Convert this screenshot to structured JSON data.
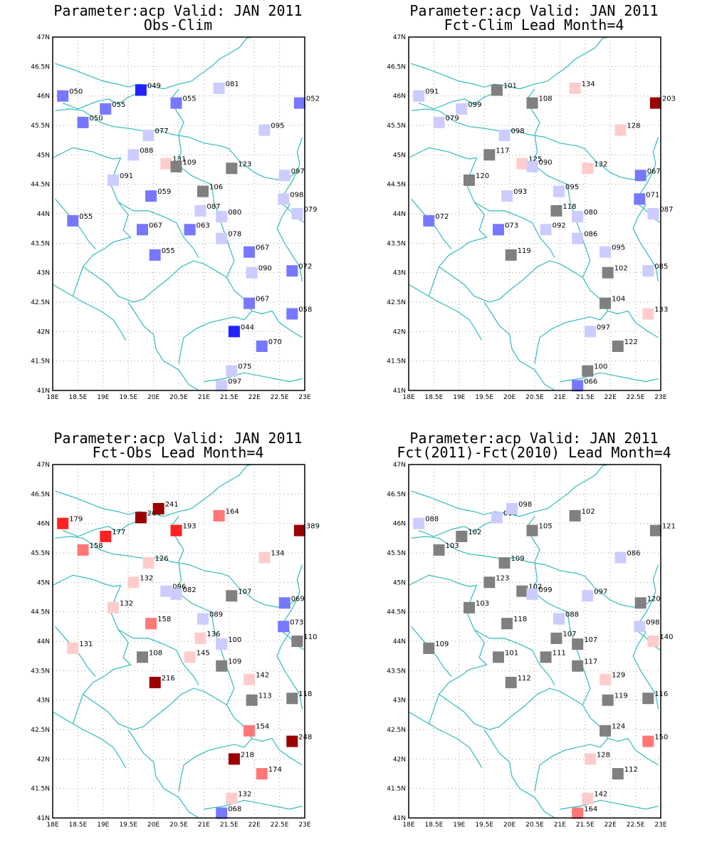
{
  "colors": {
    "border": "#33bbbb",
    "neutral": "#808080",
    "neg_light": "#ccccff",
    "neg_mid": "#7777ff",
    "neg_strong": "#2222ff",
    "pos_light": "#ffcccc",
    "pos_mid": "#ff7777",
    "pos_strong": "#ff2222",
    "pos_max": "#9b0000"
  },
  "axes": {
    "lon_range": [
      18,
      23
    ],
    "lat_range": [
      41,
      47
    ],
    "lon_ticks": [
      "18E",
      "18.5E",
      "19E",
      "19.5E",
      "20E",
      "20.5E",
      "21E",
      "21.5E",
      "22E",
      "22.5E",
      "23E"
    ],
    "lat_ticks": [
      "41N",
      "41.5N",
      "42N",
      "42.5N",
      "43N",
      "43.5N",
      "44N",
      "44.5N",
      "45N",
      "45.5N",
      "46N",
      "46.5N",
      "47N"
    ]
  },
  "panels": [
    {
      "title_line1": "Parameter:acp Valid: JAN 2011",
      "title_line2": "Obs-Clim",
      "stations": [
        {
          "lon": 18.2,
          "lat": 46.0,
          "label": "050",
          "color": "neg_mid"
        },
        {
          "lon": 19.05,
          "lat": 45.78,
          "label": "055",
          "color": "neg_mid"
        },
        {
          "lon": 19.75,
          "lat": 46.1,
          "label": "049",
          "color": "neg_strong"
        },
        {
          "lon": 20.45,
          "lat": 45.88,
          "label": "055",
          "color": "neg_mid"
        },
        {
          "lon": 21.3,
          "lat": 46.13,
          "label": "081",
          "color": "neg_light"
        },
        {
          "lon": 22.9,
          "lat": 45.88,
          "label": "052",
          "color": "neg_mid"
        },
        {
          "lon": 18.6,
          "lat": 45.55,
          "label": "050",
          "color": "neg_mid"
        },
        {
          "lon": 19.9,
          "lat": 45.33,
          "label": "077",
          "color": "neg_light"
        },
        {
          "lon": 22.2,
          "lat": 45.42,
          "label": "095",
          "color": "neg_light"
        },
        {
          "lon": 19.6,
          "lat": 45.0,
          "label": "088",
          "color": "neg_light"
        },
        {
          "lon": 20.25,
          "lat": 44.85,
          "label": "131",
          "color": "pos_light"
        },
        {
          "lon": 20.45,
          "lat": 44.8,
          "label": "109",
          "color": "neutral"
        },
        {
          "lon": 21.55,
          "lat": 44.77,
          "label": "123",
          "color": "neutral"
        },
        {
          "lon": 22.6,
          "lat": 44.65,
          "label": "097",
          "color": "neg_light"
        },
        {
          "lon": 19.2,
          "lat": 44.57,
          "label": "091",
          "color": "neg_light"
        },
        {
          "lon": 19.95,
          "lat": 44.3,
          "label": "059",
          "color": "neg_mid"
        },
        {
          "lon": 20.98,
          "lat": 44.38,
          "label": "106",
          "color": "neutral"
        },
        {
          "lon": 22.58,
          "lat": 44.25,
          "label": "098",
          "color": "neg_light"
        },
        {
          "lon": 20.93,
          "lat": 44.05,
          "label": "087",
          "color": "neg_light"
        },
        {
          "lon": 21.35,
          "lat": 43.95,
          "label": "080",
          "color": "neg_light"
        },
        {
          "lon": 22.85,
          "lat": 44.0,
          "label": "079",
          "color": "neg_light"
        },
        {
          "lon": 18.4,
          "lat": 43.88,
          "label": "055",
          "color": "neg_mid"
        },
        {
          "lon": 19.78,
          "lat": 43.73,
          "label": "067",
          "color": "neg_mid"
        },
        {
          "lon": 20.72,
          "lat": 43.73,
          "label": "063",
          "color": "neg_mid"
        },
        {
          "lon": 21.35,
          "lat": 43.58,
          "label": "078",
          "color": "neg_light"
        },
        {
          "lon": 21.9,
          "lat": 43.35,
          "label": "067",
          "color": "neg_mid"
        },
        {
          "lon": 20.03,
          "lat": 43.3,
          "label": "055",
          "color": "neg_mid"
        },
        {
          "lon": 21.95,
          "lat": 43.0,
          "label": "090",
          "color": "neg_light"
        },
        {
          "lon": 22.75,
          "lat": 43.03,
          "label": "072",
          "color": "neg_mid"
        },
        {
          "lon": 21.9,
          "lat": 42.48,
          "label": "067",
          "color": "neg_mid"
        },
        {
          "lon": 22.75,
          "lat": 42.3,
          "label": "058",
          "color": "neg_mid"
        },
        {
          "lon": 21.6,
          "lat": 42.0,
          "label": "044",
          "color": "neg_strong"
        },
        {
          "lon": 22.15,
          "lat": 41.75,
          "label": "070",
          "color": "neg_mid"
        },
        {
          "lon": 21.55,
          "lat": 41.33,
          "label": "075",
          "color": "neg_light"
        },
        {
          "lon": 21.35,
          "lat": 41.08,
          "label": "097",
          "color": "neg_light"
        }
      ]
    },
    {
      "title_line1": "Parameter:acp Valid: JAN 2011",
      "title_line2": "Fct-Clim Lead Month=4",
      "stations": [
        {
          "lon": 18.2,
          "lat": 46.0,
          "label": "091",
          "color": "neg_light"
        },
        {
          "lon": 19.05,
          "lat": 45.78,
          "label": "099",
          "color": "neg_light"
        },
        {
          "lon": 19.75,
          "lat": 46.1,
          "label": "101",
          "color": "neutral"
        },
        {
          "lon": 20.45,
          "lat": 45.88,
          "label": "108",
          "color": "neutral"
        },
        {
          "lon": 21.3,
          "lat": 46.13,
          "label": "134",
          "color": "pos_light"
        },
        {
          "lon": 22.9,
          "lat": 45.88,
          "label": "203",
          "color": "pos_max"
        },
        {
          "lon": 18.6,
          "lat": 45.55,
          "label": "079",
          "color": "neg_light"
        },
        {
          "lon": 19.9,
          "lat": 45.33,
          "label": "098",
          "color": "neg_light"
        },
        {
          "lon": 22.2,
          "lat": 45.42,
          "label": "128",
          "color": "pos_light"
        },
        {
          "lon": 19.6,
          "lat": 45.0,
          "label": "117",
          "color": "neutral"
        },
        {
          "lon": 20.25,
          "lat": 44.85,
          "label": "125",
          "color": "pos_light"
        },
        {
          "lon": 20.45,
          "lat": 44.8,
          "label": "090",
          "color": "neg_light"
        },
        {
          "lon": 21.55,
          "lat": 44.77,
          "label": "132",
          "color": "pos_light"
        },
        {
          "lon": 22.6,
          "lat": 44.65,
          "label": "067",
          "color": "neg_mid"
        },
        {
          "lon": 19.2,
          "lat": 44.57,
          "label": "120",
          "color": "neutral"
        },
        {
          "lon": 19.95,
          "lat": 44.3,
          "label": "093",
          "color": "neg_light"
        },
        {
          "lon": 20.98,
          "lat": 44.38,
          "label": "095",
          "color": "neg_light"
        },
        {
          "lon": 22.58,
          "lat": 44.25,
          "label": "071",
          "color": "neg_mid"
        },
        {
          "lon": 20.93,
          "lat": 44.05,
          "label": "118",
          "color": "neutral"
        },
        {
          "lon": 21.35,
          "lat": 43.95,
          "label": "080",
          "color": "neg_light"
        },
        {
          "lon": 22.85,
          "lat": 44.0,
          "label": "087",
          "color": "neg_light"
        },
        {
          "lon": 18.4,
          "lat": 43.88,
          "label": "072",
          "color": "neg_mid"
        },
        {
          "lon": 19.78,
          "lat": 43.73,
          "label": "073",
          "color": "neg_mid"
        },
        {
          "lon": 20.72,
          "lat": 43.73,
          "label": "092",
          "color": "neg_light"
        },
        {
          "lon": 21.35,
          "lat": 43.58,
          "label": "086",
          "color": "neg_light"
        },
        {
          "lon": 21.9,
          "lat": 43.35,
          "label": "095",
          "color": "neg_light"
        },
        {
          "lon": 20.03,
          "lat": 43.3,
          "label": "119",
          "color": "neutral"
        },
        {
          "lon": 21.95,
          "lat": 43.0,
          "label": "102",
          "color": "neutral"
        },
        {
          "lon": 22.75,
          "lat": 43.03,
          "label": "085",
          "color": "neg_light"
        },
        {
          "lon": 21.9,
          "lat": 42.48,
          "label": "104",
          "color": "neutral"
        },
        {
          "lon": 22.75,
          "lat": 42.3,
          "label": "133",
          "color": "pos_light"
        },
        {
          "lon": 21.6,
          "lat": 42.0,
          "label": "097",
          "color": "neg_light"
        },
        {
          "lon": 22.15,
          "lat": 41.75,
          "label": "122",
          "color": "neutral"
        },
        {
          "lon": 21.55,
          "lat": 41.33,
          "label": "100",
          "color": "neutral"
        },
        {
          "lon": 21.35,
          "lat": 41.08,
          "label": "066",
          "color": "neg_mid"
        }
      ]
    },
    {
      "title_line1": "Parameter:acp Valid: JAN 2011",
      "title_line2": "Fct-Obs Lead Month=4",
      "stations": [
        {
          "lon": 18.2,
          "lat": 46.0,
          "label": "179",
          "color": "pos_strong"
        },
        {
          "lon": 19.05,
          "lat": 45.78,
          "label": "177",
          "color": "pos_strong"
        },
        {
          "lon": 19.75,
          "lat": 46.1,
          "label": "204",
          "color": "pos_max"
        },
        {
          "lon": 20.1,
          "lat": 46.25,
          "label": "241",
          "color": "pos_max"
        },
        {
          "lon": 20.45,
          "lat": 45.88,
          "label": "193",
          "color": "pos_strong"
        },
        {
          "lon": 21.3,
          "lat": 46.13,
          "label": "164",
          "color": "pos_mid"
        },
        {
          "lon": 22.9,
          "lat": 45.88,
          "label": "389",
          "color": "pos_max"
        },
        {
          "lon": 18.6,
          "lat": 45.55,
          "label": "158",
          "color": "pos_mid"
        },
        {
          "lon": 19.9,
          "lat": 45.33,
          "label": "126",
          "color": "pos_light"
        },
        {
          "lon": 22.2,
          "lat": 45.42,
          "label": "134",
          "color": "pos_light"
        },
        {
          "lon": 19.6,
          "lat": 45.0,
          "label": "132",
          "color": "pos_light"
        },
        {
          "lon": 20.25,
          "lat": 44.85,
          "label": "096",
          "color": "neg_light"
        },
        {
          "lon": 20.45,
          "lat": 44.8,
          "label": "082",
          "color": "neg_light"
        },
        {
          "lon": 21.55,
          "lat": 44.77,
          "label": "107",
          "color": "neutral"
        },
        {
          "lon": 22.6,
          "lat": 44.65,
          "label": "069",
          "color": "neg_mid"
        },
        {
          "lon": 19.2,
          "lat": 44.57,
          "label": "132",
          "color": "pos_light"
        },
        {
          "lon": 19.95,
          "lat": 44.3,
          "label": "158",
          "color": "pos_mid"
        },
        {
          "lon": 20.98,
          "lat": 44.38,
          "label": "089",
          "color": "neg_light"
        },
        {
          "lon": 22.58,
          "lat": 44.25,
          "label": "073",
          "color": "neg_mid"
        },
        {
          "lon": 20.93,
          "lat": 44.05,
          "label": "136",
          "color": "pos_light"
        },
        {
          "lon": 21.35,
          "lat": 43.95,
          "label": "100",
          "color": "neg_light"
        },
        {
          "lon": 22.85,
          "lat": 44.0,
          "label": "110",
          "color": "neutral"
        },
        {
          "lon": 18.4,
          "lat": 43.88,
          "label": "131",
          "color": "pos_light"
        },
        {
          "lon": 19.78,
          "lat": 43.73,
          "label": "108",
          "color": "neutral"
        },
        {
          "lon": 20.72,
          "lat": 43.73,
          "label": "145",
          "color": "pos_light"
        },
        {
          "lon": 21.35,
          "lat": 43.58,
          "label": "109",
          "color": "neutral"
        },
        {
          "lon": 21.9,
          "lat": 43.35,
          "label": "142",
          "color": "pos_light"
        },
        {
          "lon": 20.03,
          "lat": 43.3,
          "label": "216",
          "color": "pos_max"
        },
        {
          "lon": 21.95,
          "lat": 43.0,
          "label": "113",
          "color": "neutral"
        },
        {
          "lon": 22.75,
          "lat": 43.03,
          "label": "118",
          "color": "neutral"
        },
        {
          "lon": 21.9,
          "lat": 42.48,
          "label": "154",
          "color": "pos_mid"
        },
        {
          "lon": 22.75,
          "lat": 42.3,
          "label": "248",
          "color": "pos_max"
        },
        {
          "lon": 21.6,
          "lat": 42.0,
          "label": "218",
          "color": "pos_max"
        },
        {
          "lon": 22.15,
          "lat": 41.75,
          "label": "174",
          "color": "pos_mid"
        },
        {
          "lon": 21.55,
          "lat": 41.33,
          "label": "132",
          "color": "pos_light"
        },
        {
          "lon": 21.35,
          "lat": 41.08,
          "label": "068",
          "color": "neg_mid"
        }
      ]
    },
    {
      "title_line1": "Parameter:acp Valid: JAN 2011",
      "title_line2": "Fct(2011)-Fct(2010) Lead Month=4",
      "stations": [
        {
          "lon": 18.2,
          "lat": 46.0,
          "label": "088",
          "color": "neg_light"
        },
        {
          "lon": 19.05,
          "lat": 45.78,
          "label": "102",
          "color": "neutral"
        },
        {
          "lon": 19.75,
          "lat": 46.1,
          "label": "094",
          "color": "neg_light"
        },
        {
          "lon": 20.05,
          "lat": 46.25,
          "label": "098",
          "color": "neg_light"
        },
        {
          "lon": 20.45,
          "lat": 45.88,
          "label": "105",
          "color": "neutral"
        },
        {
          "lon": 21.3,
          "lat": 46.13,
          "label": "102",
          "color": "neutral"
        },
        {
          "lon": 22.9,
          "lat": 45.88,
          "label": "121",
          "color": "neutral"
        },
        {
          "lon": 18.6,
          "lat": 45.55,
          "label": "103",
          "color": "neutral"
        },
        {
          "lon": 19.9,
          "lat": 45.33,
          "label": "109",
          "color": "neutral"
        },
        {
          "lon": 22.2,
          "lat": 45.42,
          "label": "086",
          "color": "neg_light"
        },
        {
          "lon": 19.6,
          "lat": 45.0,
          "label": "123",
          "color": "neutral"
        },
        {
          "lon": 20.25,
          "lat": 44.85,
          "label": "102",
          "color": "neutral"
        },
        {
          "lon": 20.45,
          "lat": 44.8,
          "label": "099",
          "color": "neg_light"
        },
        {
          "lon": 21.55,
          "lat": 44.77,
          "label": "097",
          "color": "neg_light"
        },
        {
          "lon": 22.6,
          "lat": 44.65,
          "label": "120",
          "color": "neutral"
        },
        {
          "lon": 19.2,
          "lat": 44.57,
          "label": "103",
          "color": "neutral"
        },
        {
          "lon": 19.95,
          "lat": 44.3,
          "label": "118",
          "color": "neutral"
        },
        {
          "lon": 20.98,
          "lat": 44.38,
          "label": "088",
          "color": "neg_light"
        },
        {
          "lon": 22.58,
          "lat": 44.25,
          "label": "098",
          "color": "neg_light"
        },
        {
          "lon": 20.93,
          "lat": 44.05,
          "label": "107",
          "color": "neutral"
        },
        {
          "lon": 21.35,
          "lat": 43.95,
          "label": "107",
          "color": "neutral"
        },
        {
          "lon": 22.85,
          "lat": 44.0,
          "label": "140",
          "color": "pos_light"
        },
        {
          "lon": 18.4,
          "lat": 43.88,
          "label": "109",
          "color": "neutral"
        },
        {
          "lon": 19.78,
          "lat": 43.73,
          "label": "101",
          "color": "neutral"
        },
        {
          "lon": 20.72,
          "lat": 43.73,
          "label": "111",
          "color": "neutral"
        },
        {
          "lon": 21.35,
          "lat": 43.58,
          "label": "117",
          "color": "neutral"
        },
        {
          "lon": 21.9,
          "lat": 43.35,
          "label": "129",
          "color": "pos_light"
        },
        {
          "lon": 20.03,
          "lat": 43.3,
          "label": "112",
          "color": "neutral"
        },
        {
          "lon": 21.95,
          "lat": 43.0,
          "label": "119",
          "color": "neutral"
        },
        {
          "lon": 22.75,
          "lat": 43.03,
          "label": "116",
          "color": "neutral"
        },
        {
          "lon": 21.9,
          "lat": 42.48,
          "label": "124",
          "color": "neutral"
        },
        {
          "lon": 22.75,
          "lat": 42.3,
          "label": "150",
          "color": "pos_mid"
        },
        {
          "lon": 21.6,
          "lat": 42.0,
          "label": "128",
          "color": "pos_light"
        },
        {
          "lon": 22.15,
          "lat": 41.75,
          "label": "112",
          "color": "neutral"
        },
        {
          "lon": 21.55,
          "lat": 41.33,
          "label": "142",
          "color": "pos_light"
        },
        {
          "lon": 21.35,
          "lat": 41.08,
          "label": "164",
          "color": "pos_mid"
        }
      ]
    }
  ]
}
